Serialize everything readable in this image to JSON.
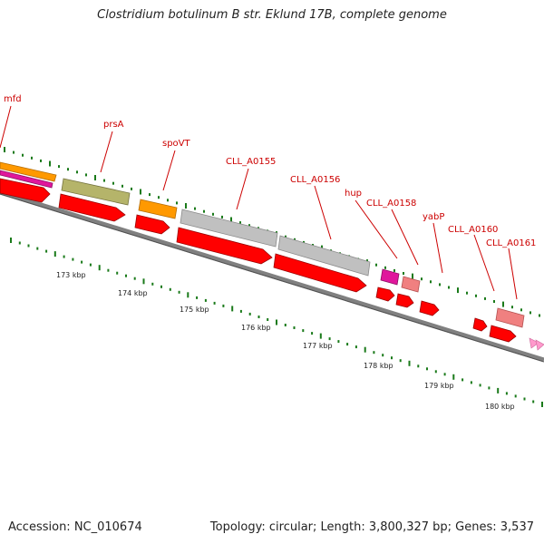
{
  "title": "Clostridium botulinum B str. Eklund 17B, complete genome",
  "footer": {
    "accession": "Accession: NC_010674",
    "summary": "Topology: circular; Length: 3,800,327 bp; Genes: 3,537"
  },
  "colors": {
    "cds": "#ff0000",
    "backbone": "#808080",
    "tick": "#1a7a1a",
    "label": "#cc0000",
    "orange": "#ff9900",
    "olive": "#b5b46a",
    "grey": "#c0c0c0",
    "magenta": "#e0179c",
    "pink": "#f08080"
  },
  "scale_labels": [
    "173 kbp",
    "174 kbp",
    "175 kbp",
    "176 kbp",
    "177 kbp",
    "178 kbp",
    "179 kbp",
    "180 kbp"
  ],
  "gene_labels": [
    {
      "name": "mfd"
    },
    {
      "name": "prsA"
    },
    {
      "name": "spoVT"
    },
    {
      "name": "CLL_A0155"
    },
    {
      "name": "CLL_A0156"
    },
    {
      "name": "hup"
    },
    {
      "name": "CLL_A0158"
    },
    {
      "name": "yabP"
    },
    {
      "name": "CLL_A0160"
    },
    {
      "name": "CLL_A0161"
    }
  ]
}
